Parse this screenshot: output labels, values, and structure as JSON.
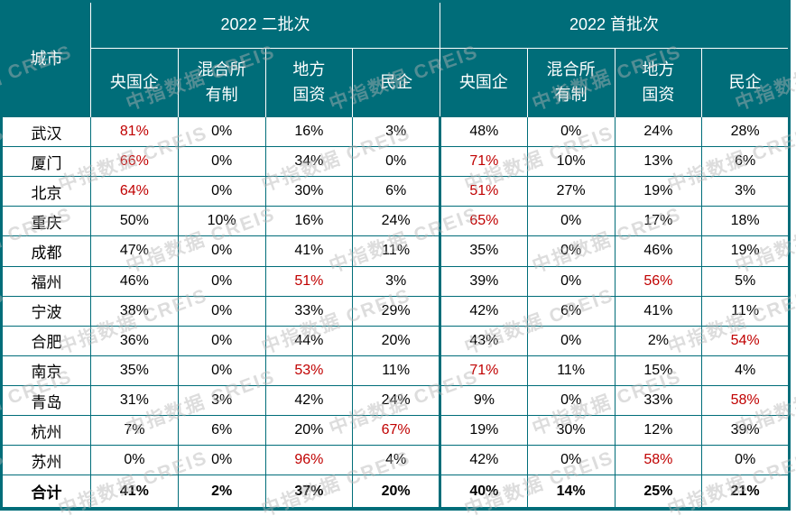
{
  "colors": {
    "header_bg": "#006d79",
    "border": "#006d79",
    "highlight_red": "#c00000",
    "watermark_gray": "#b5b5b5"
  },
  "watermark": {
    "text": "中指数据 CREIS"
  },
  "header": {
    "city": "城市",
    "groups": [
      {
        "label": "2022 二批次"
      },
      {
        "label": "2022 首批次"
      }
    ],
    "subcolumns": [
      "央国企",
      "混合所\n有制",
      "地方\n国资",
      "民企"
    ]
  },
  "rows": [
    {
      "city": "武汉",
      "cells": [
        {
          "v": "81%",
          "red": true
        },
        {
          "v": "0%"
        },
        {
          "v": "16%"
        },
        {
          "v": "3%"
        },
        {
          "v": "48%"
        },
        {
          "v": "0%"
        },
        {
          "v": "24%"
        },
        {
          "v": "28%"
        }
      ]
    },
    {
      "city": "厦门",
      "cells": [
        {
          "v": "66%",
          "red": true
        },
        {
          "v": "0%"
        },
        {
          "v": "34%"
        },
        {
          "v": "0%"
        },
        {
          "v": "71%",
          "red": true
        },
        {
          "v": "10%"
        },
        {
          "v": "13%"
        },
        {
          "v": "6%"
        }
      ]
    },
    {
      "city": "北京",
      "cells": [
        {
          "v": "64%",
          "red": true
        },
        {
          "v": "0%"
        },
        {
          "v": "30%"
        },
        {
          "v": "6%"
        },
        {
          "v": "51%",
          "red": true
        },
        {
          "v": "27%"
        },
        {
          "v": "19%"
        },
        {
          "v": "3%"
        }
      ]
    },
    {
      "city": "重庆",
      "cells": [
        {
          "v": "50%"
        },
        {
          "v": "10%"
        },
        {
          "v": "16%"
        },
        {
          "v": "24%"
        },
        {
          "v": "65%",
          "red": true
        },
        {
          "v": "0%"
        },
        {
          "v": "17%"
        },
        {
          "v": "18%"
        }
      ]
    },
    {
      "city": "成都",
      "cells": [
        {
          "v": "47%"
        },
        {
          "v": "0%"
        },
        {
          "v": "41%"
        },
        {
          "v": "11%"
        },
        {
          "v": "35%"
        },
        {
          "v": "0%"
        },
        {
          "v": "46%"
        },
        {
          "v": "19%"
        }
      ]
    },
    {
      "city": "福州",
      "cells": [
        {
          "v": "46%"
        },
        {
          "v": "0%"
        },
        {
          "v": "51%",
          "red": true
        },
        {
          "v": "3%"
        },
        {
          "v": "39%"
        },
        {
          "v": "0%"
        },
        {
          "v": "56%",
          "red": true
        },
        {
          "v": "5%"
        }
      ]
    },
    {
      "city": "宁波",
      "cells": [
        {
          "v": "38%"
        },
        {
          "v": "0%"
        },
        {
          "v": "33%"
        },
        {
          "v": "29%"
        },
        {
          "v": "42%"
        },
        {
          "v": "6%"
        },
        {
          "v": "41%"
        },
        {
          "v": "11%"
        }
      ]
    },
    {
      "city": "合肥",
      "cells": [
        {
          "v": "36%"
        },
        {
          "v": "0%"
        },
        {
          "v": "44%"
        },
        {
          "v": "20%"
        },
        {
          "v": "43%"
        },
        {
          "v": "0%"
        },
        {
          "v": "2%"
        },
        {
          "v": "54%",
          "red": true
        }
      ]
    },
    {
      "city": "南京",
      "cells": [
        {
          "v": "35%"
        },
        {
          "v": "0%"
        },
        {
          "v": "53%",
          "red": true
        },
        {
          "v": "11%"
        },
        {
          "v": "71%",
          "red": true
        },
        {
          "v": "11%"
        },
        {
          "v": "15%"
        },
        {
          "v": "4%"
        }
      ]
    },
    {
      "city": "青岛",
      "cells": [
        {
          "v": "31%"
        },
        {
          "v": "3%"
        },
        {
          "v": "42%"
        },
        {
          "v": "24%"
        },
        {
          "v": "9%"
        },
        {
          "v": "0%"
        },
        {
          "v": "33%"
        },
        {
          "v": "58%",
          "red": true
        }
      ]
    },
    {
      "city": "杭州",
      "cells": [
        {
          "v": "7%"
        },
        {
          "v": "6%"
        },
        {
          "v": "20%"
        },
        {
          "v": "67%",
          "red": true
        },
        {
          "v": "19%"
        },
        {
          "v": "30%"
        },
        {
          "v": "12%"
        },
        {
          "v": "39%"
        }
      ]
    },
    {
      "city": "苏州",
      "cells": [
        {
          "v": "0%"
        },
        {
          "v": "0%"
        },
        {
          "v": "96%",
          "red": true
        },
        {
          "v": "4%"
        },
        {
          "v": "42%"
        },
        {
          "v": "0%"
        },
        {
          "v": "58%",
          "red": true
        },
        {
          "v": "0%"
        }
      ]
    }
  ],
  "total_row": {
    "city": "合计",
    "cells": [
      {
        "v": "41%"
      },
      {
        "v": "2%"
      },
      {
        "v": "37%"
      },
      {
        "v": "20%"
      },
      {
        "v": "40%"
      },
      {
        "v": "14%"
      },
      {
        "v": "25%"
      },
      {
        "v": "21%"
      }
    ]
  }
}
